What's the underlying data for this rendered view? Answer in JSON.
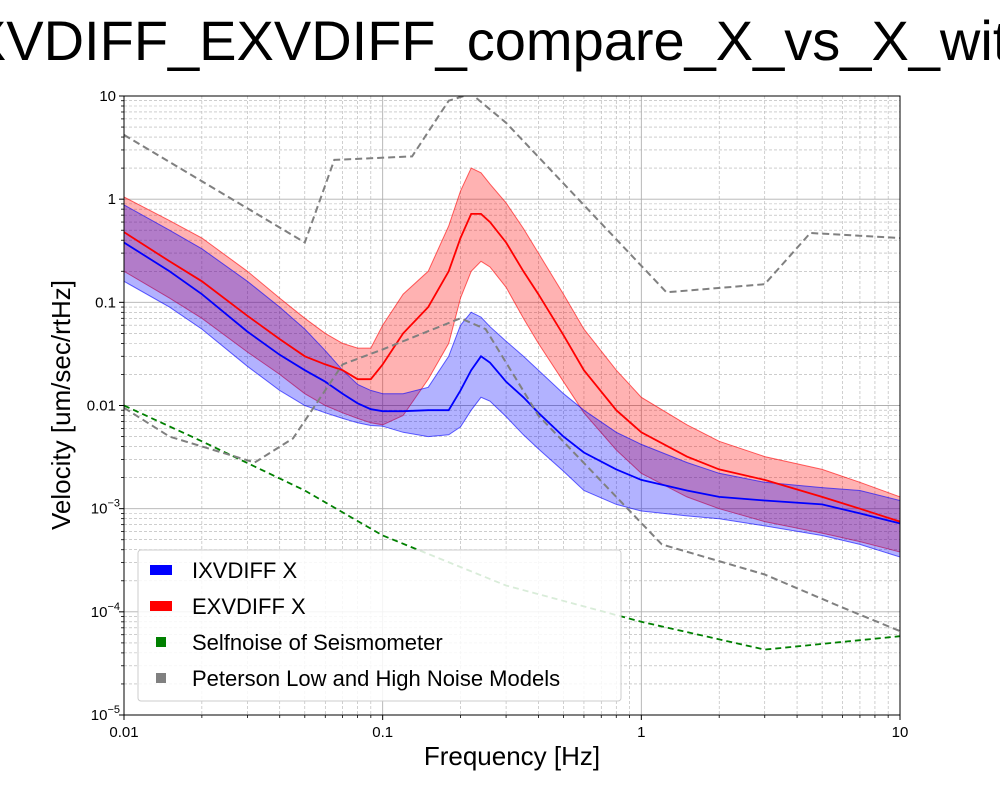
{
  "chart_data": {
    "type": "line",
    "title": "IXVDIFF_EXVDIFF_compare_X_vs_X_with_",
    "xlabel": "Frequency [Hz]",
    "ylabel": "Velocity [um/sec/rtHz]",
    "xscale": "log",
    "yscale": "log",
    "xlim": [
      0.01,
      10
    ],
    "ylim": [
      1e-05,
      10
    ],
    "grid": true,
    "legend_position": "lower-left",
    "x_ticks": [
      {
        "value": 0.01,
        "label": "0.01"
      },
      {
        "value": 0.1,
        "label": "0.1"
      },
      {
        "value": 1,
        "label": "1"
      },
      {
        "value": 10,
        "label": "10"
      }
    ],
    "y_ticks": [
      {
        "value": 10,
        "label": "10",
        "exp": ""
      },
      {
        "value": 1,
        "label": "1",
        "exp": ""
      },
      {
        "value": 0.1,
        "label": "0.1",
        "exp": ""
      },
      {
        "value": 0.01,
        "label": "0.01",
        "exp": ""
      },
      {
        "value": 0.001,
        "label": "10",
        "exp": "−3"
      },
      {
        "value": 0.0001,
        "label": "10",
        "exp": "−4"
      },
      {
        "value": 1e-05,
        "label": "10",
        "exp": "−5"
      }
    ],
    "series": [
      {
        "name": "IXVDIFF X",
        "color": "#0000ff",
        "band_color": "#0000ff",
        "x": [
          0.01,
          0.015,
          0.02,
          0.03,
          0.04,
          0.05,
          0.06,
          0.07,
          0.08,
          0.09,
          0.1,
          0.12,
          0.15,
          0.18,
          0.2,
          0.22,
          0.24,
          0.26,
          0.3,
          0.35,
          0.4,
          0.5,
          0.6,
          0.8,
          1,
          1.5,
          2,
          3,
          5,
          7,
          10
        ],
        "median": [
          0.38,
          0.2,
          0.12,
          0.052,
          0.031,
          0.022,
          0.017,
          0.013,
          0.0105,
          0.0092,
          0.0088,
          0.0088,
          0.009,
          0.009,
          0.014,
          0.022,
          0.03,
          0.026,
          0.017,
          0.012,
          0.0085,
          0.005,
          0.0035,
          0.0024,
          0.0019,
          0.0015,
          0.0013,
          0.0012,
          0.0011,
          0.0009,
          0.00072
        ],
        "upper": [
          0.88,
          0.5,
          0.33,
          0.16,
          0.09,
          0.055,
          0.034,
          0.022,
          0.016,
          0.014,
          0.013,
          0.013,
          0.015,
          0.03,
          0.06,
          0.08,
          0.072,
          0.058,
          0.042,
          0.03,
          0.022,
          0.013,
          0.009,
          0.0055,
          0.0042,
          0.0028,
          0.0022,
          0.0018,
          0.0016,
          0.0015,
          0.0012
        ],
        "lower": [
          0.16,
          0.09,
          0.055,
          0.024,
          0.014,
          0.01,
          0.0085,
          0.0075,
          0.0068,
          0.0064,
          0.0063,
          0.0055,
          0.005,
          0.0052,
          0.0062,
          0.009,
          0.012,
          0.011,
          0.0078,
          0.0052,
          0.0038,
          0.0023,
          0.0015,
          0.0011,
          0.00095,
          0.00085,
          0.0008,
          0.00068,
          0.00055,
          0.00045,
          0.00034
        ]
      },
      {
        "name": "EXVDIFF X",
        "color": "#ff0000",
        "band_color": "#ff0000",
        "x": [
          0.01,
          0.015,
          0.02,
          0.03,
          0.04,
          0.05,
          0.06,
          0.07,
          0.08,
          0.09,
          0.1,
          0.12,
          0.15,
          0.18,
          0.2,
          0.22,
          0.24,
          0.26,
          0.3,
          0.35,
          0.4,
          0.5,
          0.6,
          0.8,
          1,
          1.5,
          2,
          3,
          5,
          7,
          10
        ],
        "median": [
          0.48,
          0.25,
          0.16,
          0.074,
          0.044,
          0.03,
          0.025,
          0.022,
          0.018,
          0.018,
          0.025,
          0.05,
          0.09,
          0.2,
          0.42,
          0.72,
          0.72,
          0.6,
          0.38,
          0.2,
          0.12,
          0.048,
          0.022,
          0.009,
          0.0055,
          0.0032,
          0.0024,
          0.0019,
          0.0013,
          0.001,
          0.00075
        ],
        "upper": [
          1.05,
          0.62,
          0.42,
          0.2,
          0.11,
          0.07,
          0.05,
          0.04,
          0.036,
          0.036,
          0.06,
          0.12,
          0.2,
          0.55,
          1.2,
          2.0,
          1.8,
          1.4,
          0.92,
          0.52,
          0.3,
          0.12,
          0.055,
          0.022,
          0.012,
          0.0065,
          0.0045,
          0.0032,
          0.0024,
          0.0018,
          0.0013
        ],
        "lower": [
          0.2,
          0.11,
          0.07,
          0.033,
          0.02,
          0.013,
          0.01,
          0.0085,
          0.0075,
          0.0068,
          0.0065,
          0.008,
          0.018,
          0.04,
          0.11,
          0.2,
          0.25,
          0.22,
          0.14,
          0.07,
          0.04,
          0.017,
          0.0085,
          0.0037,
          0.0022,
          0.0013,
          0.001,
          0.00075,
          0.00058,
          0.00048,
          0.00038
        ]
      },
      {
        "name": "Selfnoise of Seismometer",
        "color": "#008000",
        "style": "dashed",
        "x": [
          0.01,
          0.02,
          0.05,
          0.1,
          0.3,
          1,
          3,
          10
        ],
        "values": [
          0.01,
          0.0045,
          0.0015,
          0.00055,
          0.00018,
          8e-05,
          4.3e-05,
          5.8e-05
        ]
      },
      {
        "name": "Peterson Low and High Noise Models",
        "color": "#808080",
        "style": "dashed",
        "lines": [
          {
            "x": [
              0.01,
              0.05,
              0.065,
              0.13,
              0.18,
              0.22,
              0.3,
              1.25,
              3,
              4.5,
              10
            ],
            "values": [
              4.2,
              0.38,
              2.4,
              2.6,
              9.0,
              10.5,
              5.5,
              0.125,
              0.15,
              0.47,
              0.42
            ]
          },
          {
            "x": [
              0.01,
              0.015,
              0.032,
              0.045,
              0.07,
              0.1,
              0.2,
              0.25,
              0.4,
              1.2,
              3,
              6,
              10
            ],
            "values": [
              0.0095,
              0.005,
              0.0028,
              0.0048,
              0.025,
              0.035,
              0.07,
              0.055,
              0.008,
              0.00045,
              0.00023,
              0.00011,
              6.5e-05
            ]
          }
        ]
      }
    ]
  }
}
